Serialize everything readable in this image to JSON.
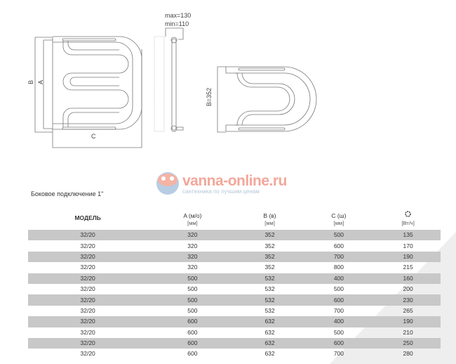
{
  "diagram": {
    "label_b": "B",
    "label_a": "A",
    "label_c": "C",
    "max": "max=130",
    "min": "min=110",
    "b352": "B=352"
  },
  "watermark": {
    "brand_main": "vanna-",
    "brand_accent": "online.ru",
    "tagline": "сантехника по лучшим ценам"
  },
  "subtitle": "Боковое подключение 1\"",
  "table": {
    "headers": [
      {
        "title": "МОДЕЛЬ",
        "unit": ""
      },
      {
        "title": "A (м/о)",
        "unit": "[мм]"
      },
      {
        "title": "B (в)",
        "unit": "[мм]"
      },
      {
        "title": "C (ш)",
        "unit": "[мм]"
      },
      {
        "title": "",
        "unit": "[Вт/ч]",
        "icon": "sun-icon"
      }
    ],
    "rows": [
      [
        "32/20",
        "320",
        "352",
        "500",
        "135"
      ],
      [
        "32/20",
        "320",
        "352",
        "600",
        "170"
      ],
      [
        "32/20",
        "320",
        "352",
        "700",
        "190"
      ],
      [
        "32/20",
        "320",
        "352",
        "800",
        "215"
      ],
      [
        "32/20",
        "500",
        "532",
        "400",
        "160"
      ],
      [
        "32/20",
        "500",
        "532",
        "500",
        "200"
      ],
      [
        "32/20",
        "500",
        "532",
        "600",
        "230"
      ],
      [
        "32/20",
        "500",
        "532",
        "700",
        "265"
      ],
      [
        "32/20",
        "600",
        "632",
        "400",
        "190"
      ],
      [
        "32/20",
        "600",
        "632",
        "500",
        "210"
      ],
      [
        "32/20",
        "600",
        "632",
        "600",
        "250"
      ],
      [
        "32/20",
        "600",
        "632",
        "700",
        "280"
      ]
    ]
  }
}
